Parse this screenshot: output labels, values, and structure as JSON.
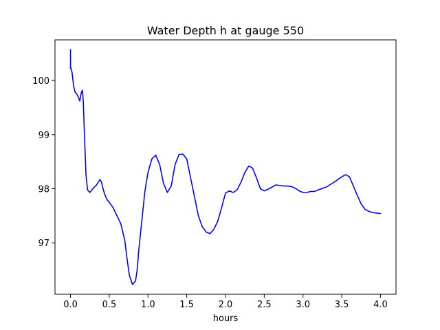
{
  "chart_data": {
    "type": "line",
    "title": "Water Depth h at gauge 550",
    "xlabel": "hours",
    "ylabel": "",
    "xlim": [
      -0.2,
      4.2
    ],
    "ylim": [
      96.05,
      100.75
    ],
    "xticks": [
      0.0,
      0.5,
      1.0,
      1.5,
      2.0,
      2.5,
      3.0,
      3.5,
      4.0
    ],
    "xtick_labels": [
      "0.0",
      "0.5",
      "1.0",
      "1.5",
      "2.0",
      "2.5",
      "3.0",
      "3.5",
      "4.0"
    ],
    "yticks": [
      97,
      98,
      99,
      100
    ],
    "ytick_labels": [
      "97",
      "98",
      "99",
      "100"
    ],
    "grid": false,
    "series": [
      {
        "color": "#0000ff",
        "x": [
          0.0,
          0.0,
          0.0,
          0.02,
          0.04,
          0.06,
          0.08,
          0.1,
          0.12,
          0.14,
          0.155,
          0.165,
          0.18,
          0.2,
          0.22,
          0.25,
          0.3,
          0.33,
          0.35,
          0.38,
          0.4,
          0.42,
          0.44,
          0.47,
          0.5,
          0.55,
          0.6,
          0.65,
          0.7,
          0.73,
          0.76,
          0.8,
          0.84,
          0.86,
          0.88,
          0.92,
          0.96,
          1.0,
          1.05,
          1.1,
          1.15,
          1.2,
          1.25,
          1.3,
          1.35,
          1.4,
          1.45,
          1.5,
          1.55,
          1.6,
          1.65,
          1.7,
          1.75,
          1.8,
          1.85,
          1.9,
          1.95,
          2.0,
          2.05,
          2.1,
          2.15,
          2.2,
          2.25,
          2.3,
          2.35,
          2.4,
          2.45,
          2.5,
          2.55,
          2.6,
          2.65,
          2.7,
          2.75,
          2.8,
          2.85,
          2.9,
          2.95,
          3.0,
          3.05,
          3.1,
          3.15,
          3.2,
          3.3,
          3.4,
          3.5,
          3.55,
          3.6,
          3.65,
          3.7,
          3.75,
          3.8,
          3.85,
          3.9,
          3.95,
          4.0
        ],
        "y": [
          100.57,
          100.22,
          100.25,
          100.15,
          99.9,
          99.78,
          99.75,
          99.7,
          99.62,
          99.78,
          99.82,
          99.6,
          99.0,
          98.25,
          97.98,
          97.93,
          98.02,
          98.06,
          98.1,
          98.17,
          98.12,
          98.0,
          97.9,
          97.8,
          97.75,
          97.65,
          97.5,
          97.35,
          97.05,
          96.7,
          96.4,
          96.23,
          96.3,
          96.5,
          96.85,
          97.4,
          97.95,
          98.3,
          98.55,
          98.62,
          98.45,
          98.1,
          97.93,
          98.05,
          98.45,
          98.63,
          98.64,
          98.55,
          98.2,
          97.85,
          97.5,
          97.3,
          97.2,
          97.17,
          97.25,
          97.4,
          97.65,
          97.92,
          97.96,
          97.93,
          97.98,
          98.12,
          98.3,
          98.42,
          98.38,
          98.2,
          98.0,
          97.96,
          97.99,
          98.03,
          98.07,
          98.06,
          98.05,
          98.05,
          98.04,
          98.01,
          97.96,
          97.93,
          97.93,
          97.95,
          97.95,
          97.98,
          98.03,
          98.12,
          98.22,
          98.26,
          98.22,
          98.05,
          97.88,
          97.72,
          97.62,
          97.58,
          97.56,
          97.55,
          97.54
        ]
      }
    ]
  }
}
